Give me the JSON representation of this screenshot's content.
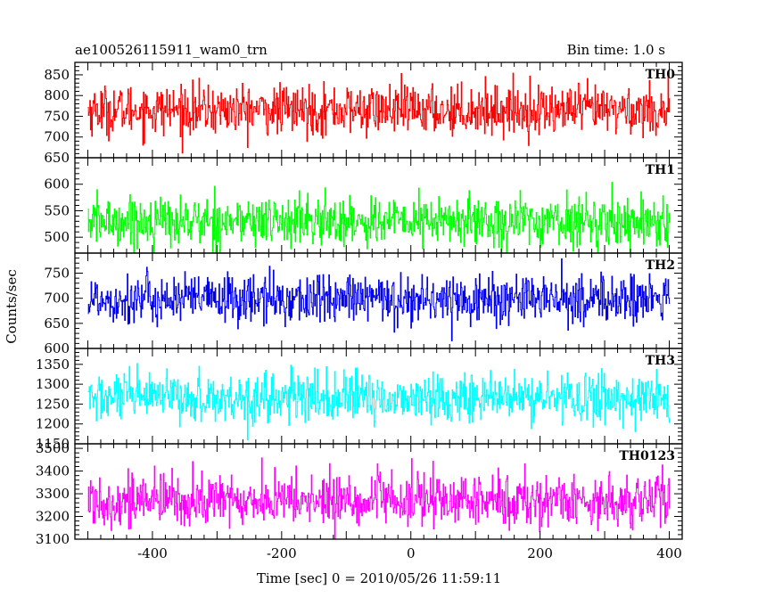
{
  "chart_data": {
    "type": "line",
    "title": "ae100526115911_wam0_trn",
    "subtitle": "Bin time: 1.0 s",
    "xlabel": "Time [sec] 0 = 2010/05/26 11:59:11",
    "ylabel": "Counts/sec",
    "xlim": [
      -520,
      420
    ],
    "x_ticks": [
      -400,
      -200,
      0,
      200,
      400
    ],
    "x_range": [
      -500,
      400
    ],
    "x_step": 1,
    "grid": false,
    "legend": "none",
    "panels": [
      {
        "label": "TH0",
        "color": "#ff0000",
        "ylim": [
          650,
          880
        ],
        "y_ticks": [
          650,
          700,
          750,
          800,
          850
        ],
        "mean": 765,
        "spread": 38
      },
      {
        "label": "TH1",
        "color": "#00ff00",
        "ylim": [
          470,
          650
        ],
        "y_ticks": [
          500,
          550,
          600
        ],
        "mean": 530,
        "spread": 30
      },
      {
        "label": "TH2",
        "color": "#0000ee",
        "ylim": [
          600,
          790
        ],
        "y_ticks": [
          600,
          650,
          700,
          750
        ],
        "mean": 698,
        "spread": 32
      },
      {
        "label": "TH3",
        "color": "#00ffff",
        "ylim": [
          1150,
          1390
        ],
        "y_ticks": [
          1150,
          1200,
          1250,
          1300,
          1350
        ],
        "mean": 1265,
        "spread": 40
      },
      {
        "label": "TH0123",
        "color": "#ff00ff",
        "ylim": [
          3100,
          3520
        ],
        "y_ticks": [
          3100,
          3200,
          3300,
          3400,
          3500
        ],
        "mean": 3270,
        "spread": 75
      }
    ]
  }
}
